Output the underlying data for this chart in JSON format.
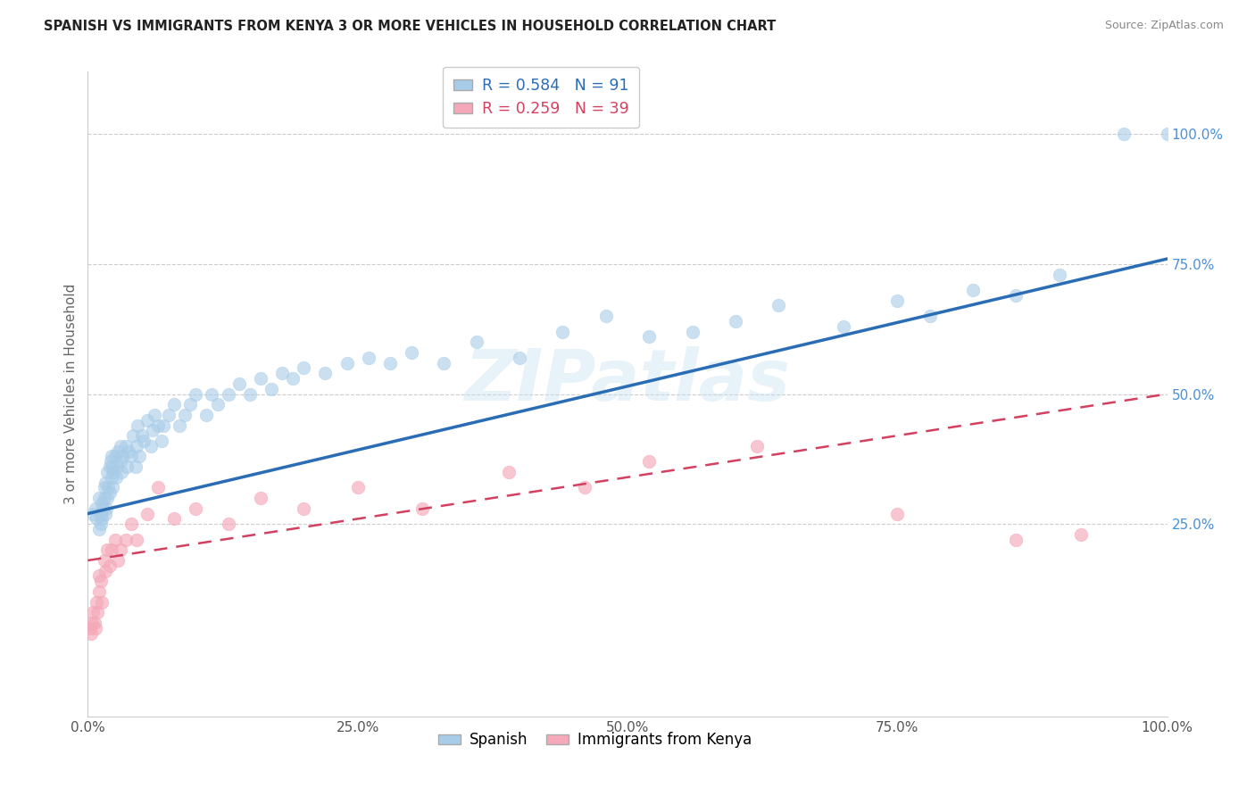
{
  "title": "SPANISH VS IMMIGRANTS FROM KENYA 3 OR MORE VEHICLES IN HOUSEHOLD CORRELATION CHART",
  "source": "Source: ZipAtlas.com",
  "ylabel": "3 or more Vehicles in Household",
  "r_spanish": 0.584,
  "n_spanish": 91,
  "r_kenya": 0.259,
  "n_kenya": 39,
  "watermark": "ZIPatlas",
  "blue_scatter_color": "#a8cce8",
  "pink_scatter_color": "#f4a8b8",
  "blue_line_color": "#2a6db5",
  "pink_line_color": "#d44060",
  "background_color": "#ffffff",
  "grid_color": "#cccccc",
  "xlim": [
    0.0,
    1.0
  ],
  "ylim": [
    -0.12,
    1.12
  ],
  "xtick_labels": [
    "0.0%",
    "25.0%",
    "50.0%",
    "75.0%",
    "100.0%"
  ],
  "xtick_values": [
    0.0,
    0.25,
    0.5,
    0.75,
    1.0
  ],
  "ytick_labels": [
    "25.0%",
    "50.0%",
    "75.0%",
    "100.0%"
  ],
  "ytick_values": [
    0.25,
    0.5,
    0.75,
    1.0
  ],
  "ytick_color": "#4a90d9",
  "xtick_color": "#555555",
  "title_color": "#222222",
  "source_color": "#888888",
  "spanish_x": [
    0.005,
    0.007,
    0.008,
    0.01,
    0.01,
    0.012,
    0.012,
    0.013,
    0.013,
    0.014,
    0.015,
    0.015,
    0.016,
    0.016,
    0.017,
    0.018,
    0.018,
    0.019,
    0.02,
    0.02,
    0.021,
    0.022,
    0.022,
    0.023,
    0.023,
    0.024,
    0.025,
    0.026,
    0.027,
    0.028,
    0.03,
    0.03,
    0.031,
    0.032,
    0.035,
    0.036,
    0.038,
    0.04,
    0.042,
    0.044,
    0.045,
    0.046,
    0.048,
    0.05,
    0.052,
    0.055,
    0.058,
    0.06,
    0.062,
    0.065,
    0.068,
    0.07,
    0.075,
    0.08,
    0.085,
    0.09,
    0.095,
    0.1,
    0.11,
    0.115,
    0.12,
    0.13,
    0.14,
    0.15,
    0.16,
    0.17,
    0.18,
    0.19,
    0.2,
    0.22,
    0.24,
    0.26,
    0.28,
    0.3,
    0.33,
    0.36,
    0.4,
    0.44,
    0.48,
    0.52,
    0.56,
    0.6,
    0.64,
    0.7,
    0.75,
    0.78,
    0.82,
    0.86,
    0.9,
    0.96,
    1.0
  ],
  "spanish_y": [
    0.27,
    0.28,
    0.26,
    0.3,
    0.24,
    0.27,
    0.25,
    0.29,
    0.26,
    0.28,
    0.3,
    0.32,
    0.27,
    0.33,
    0.28,
    0.35,
    0.3,
    0.32,
    0.36,
    0.31,
    0.37,
    0.34,
    0.38,
    0.32,
    0.36,
    0.35,
    0.38,
    0.34,
    0.36,
    0.39,
    0.37,
    0.4,
    0.35,
    0.38,
    0.4,
    0.36,
    0.39,
    0.38,
    0.42,
    0.36,
    0.4,
    0.44,
    0.38,
    0.42,
    0.41,
    0.45,
    0.4,
    0.43,
    0.46,
    0.44,
    0.41,
    0.44,
    0.46,
    0.48,
    0.44,
    0.46,
    0.48,
    0.5,
    0.46,
    0.5,
    0.48,
    0.5,
    0.52,
    0.5,
    0.53,
    0.51,
    0.54,
    0.53,
    0.55,
    0.54,
    0.56,
    0.57,
    0.56,
    0.58,
    0.56,
    0.6,
    0.57,
    0.62,
    0.65,
    0.61,
    0.62,
    0.64,
    0.67,
    0.63,
    0.68,
    0.65,
    0.7,
    0.69,
    0.73,
    1.0,
    1.0
  ],
  "kenya_x": [
    0.002,
    0.003,
    0.004,
    0.005,
    0.006,
    0.007,
    0.008,
    0.009,
    0.01,
    0.01,
    0.012,
    0.013,
    0.015,
    0.016,
    0.018,
    0.02,
    0.022,
    0.025,
    0.028,
    0.03,
    0.035,
    0.04,
    0.045,
    0.055,
    0.065,
    0.08,
    0.1,
    0.13,
    0.16,
    0.2,
    0.25,
    0.31,
    0.39,
    0.46,
    0.52,
    0.62,
    0.75,
    0.86,
    0.92
  ],
  "kenya_y": [
    0.05,
    0.04,
    0.06,
    0.08,
    0.06,
    0.05,
    0.1,
    0.08,
    0.12,
    0.15,
    0.14,
    0.1,
    0.18,
    0.16,
    0.2,
    0.17,
    0.2,
    0.22,
    0.18,
    0.2,
    0.22,
    0.25,
    0.22,
    0.27,
    0.32,
    0.26,
    0.28,
    0.25,
    0.3,
    0.28,
    0.32,
    0.28,
    0.35,
    0.32,
    0.37,
    0.4,
    0.27,
    0.22,
    0.23
  ]
}
